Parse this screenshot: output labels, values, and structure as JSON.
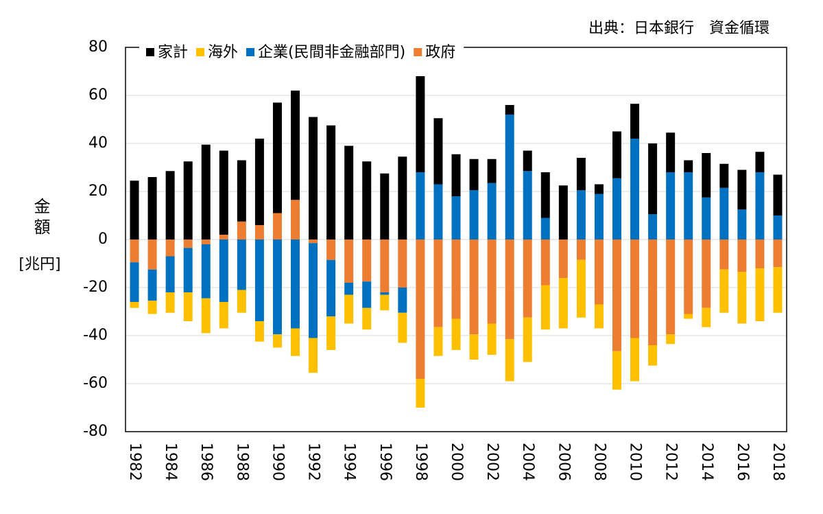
{
  "chart_data": {
    "type": "stacked-bar",
    "source": "出典：日本銀行　資金循環",
    "y_label": "金額",
    "y_unit": "[兆円]",
    "categories": [
      "1982",
      null,
      "1984",
      null,
      "1986",
      null,
      "1988",
      null,
      "1990",
      null,
      "1992",
      null,
      "1994",
      null,
      "1996",
      null,
      "1998",
      null,
      "2000",
      null,
      "2002",
      null,
      "2004",
      null,
      "2006",
      null,
      "2008",
      null,
      "2010",
      null,
      "2012",
      null,
      "2014",
      null,
      "2016",
      null,
      "2018"
    ],
    "series": [
      {
        "name": "家計",
        "color": "#000000",
        "values": [
          24.5,
          26,
          28.5,
          32.5,
          39.5,
          35,
          25.5,
          36,
          46,
          45.5,
          51,
          47.5,
          39,
          32.5,
          27.5,
          34.5,
          40,
          27.5,
          17.5,
          13,
          10,
          4,
          8.5,
          19,
          22.5,
          13.5,
          4,
          19.5,
          14.5,
          29.5,
          16.5,
          5,
          18.5,
          10,
          16.5,
          8.5,
          17
        ]
      },
      {
        "name": "海外",
        "color": "#ffc000",
        "values": [
          -2.5,
          -5.5,
          -8.5,
          -12,
          -14.5,
          -11,
          -9.5,
          -8.5,
          -5.5,
          -11.5,
          -14.5,
          -14,
          -12,
          -9,
          -6.5,
          -12.5,
          -12,
          -12,
          -13,
          -10.5,
          -13,
          -17.5,
          -18.5,
          -18.5,
          -21,
          -24,
          -10,
          -16,
          -18,
          -8.5,
          -4,
          -2,
          -8,
          -18,
          -21.5,
          -22,
          -19
        ]
      },
      {
        "name": "企業(民間非金融部門)",
        "color": "#0070c0",
        "values": [
          -16.5,
          -13,
          -15,
          -18.5,
          -22.5,
          -26,
          -21,
          -34,
          -39.5,
          -37,
          -39.5,
          -23.5,
          -5,
          -11,
          -1,
          -10.5,
          28,
          23,
          18,
          20.5,
          23.5,
          52,
          28.5,
          9,
          0,
          20.5,
          19,
          25.5,
          42,
          10.5,
          28,
          28,
          17.5,
          21.5,
          12.5,
          28,
          10
        ]
      },
      {
        "name": "政府",
        "color": "#ed7d31",
        "values": [
          -9.5,
          -12.5,
          -7,
          -3.5,
          -2,
          2,
          7.5,
          6,
          11,
          16.5,
          -1.5,
          -8.5,
          -18,
          -17.5,
          -22,
          -20,
          -58,
          -36.5,
          -33,
          -39.5,
          -35,
          -41.5,
          -32.5,
          -19,
          -16,
          -8.5,
          -27,
          -46.5,
          -41,
          -44,
          -39.5,
          -31,
          -28.5,
          -12.5,
          -13.5,
          -12,
          -11.5
        ]
      }
    ],
    "ylim": [
      -80,
      80
    ],
    "yticks": [
      -80,
      -60,
      -40,
      -20,
      0,
      20,
      40,
      60,
      80
    ],
    "grid": true,
    "legend": "upper left"
  }
}
